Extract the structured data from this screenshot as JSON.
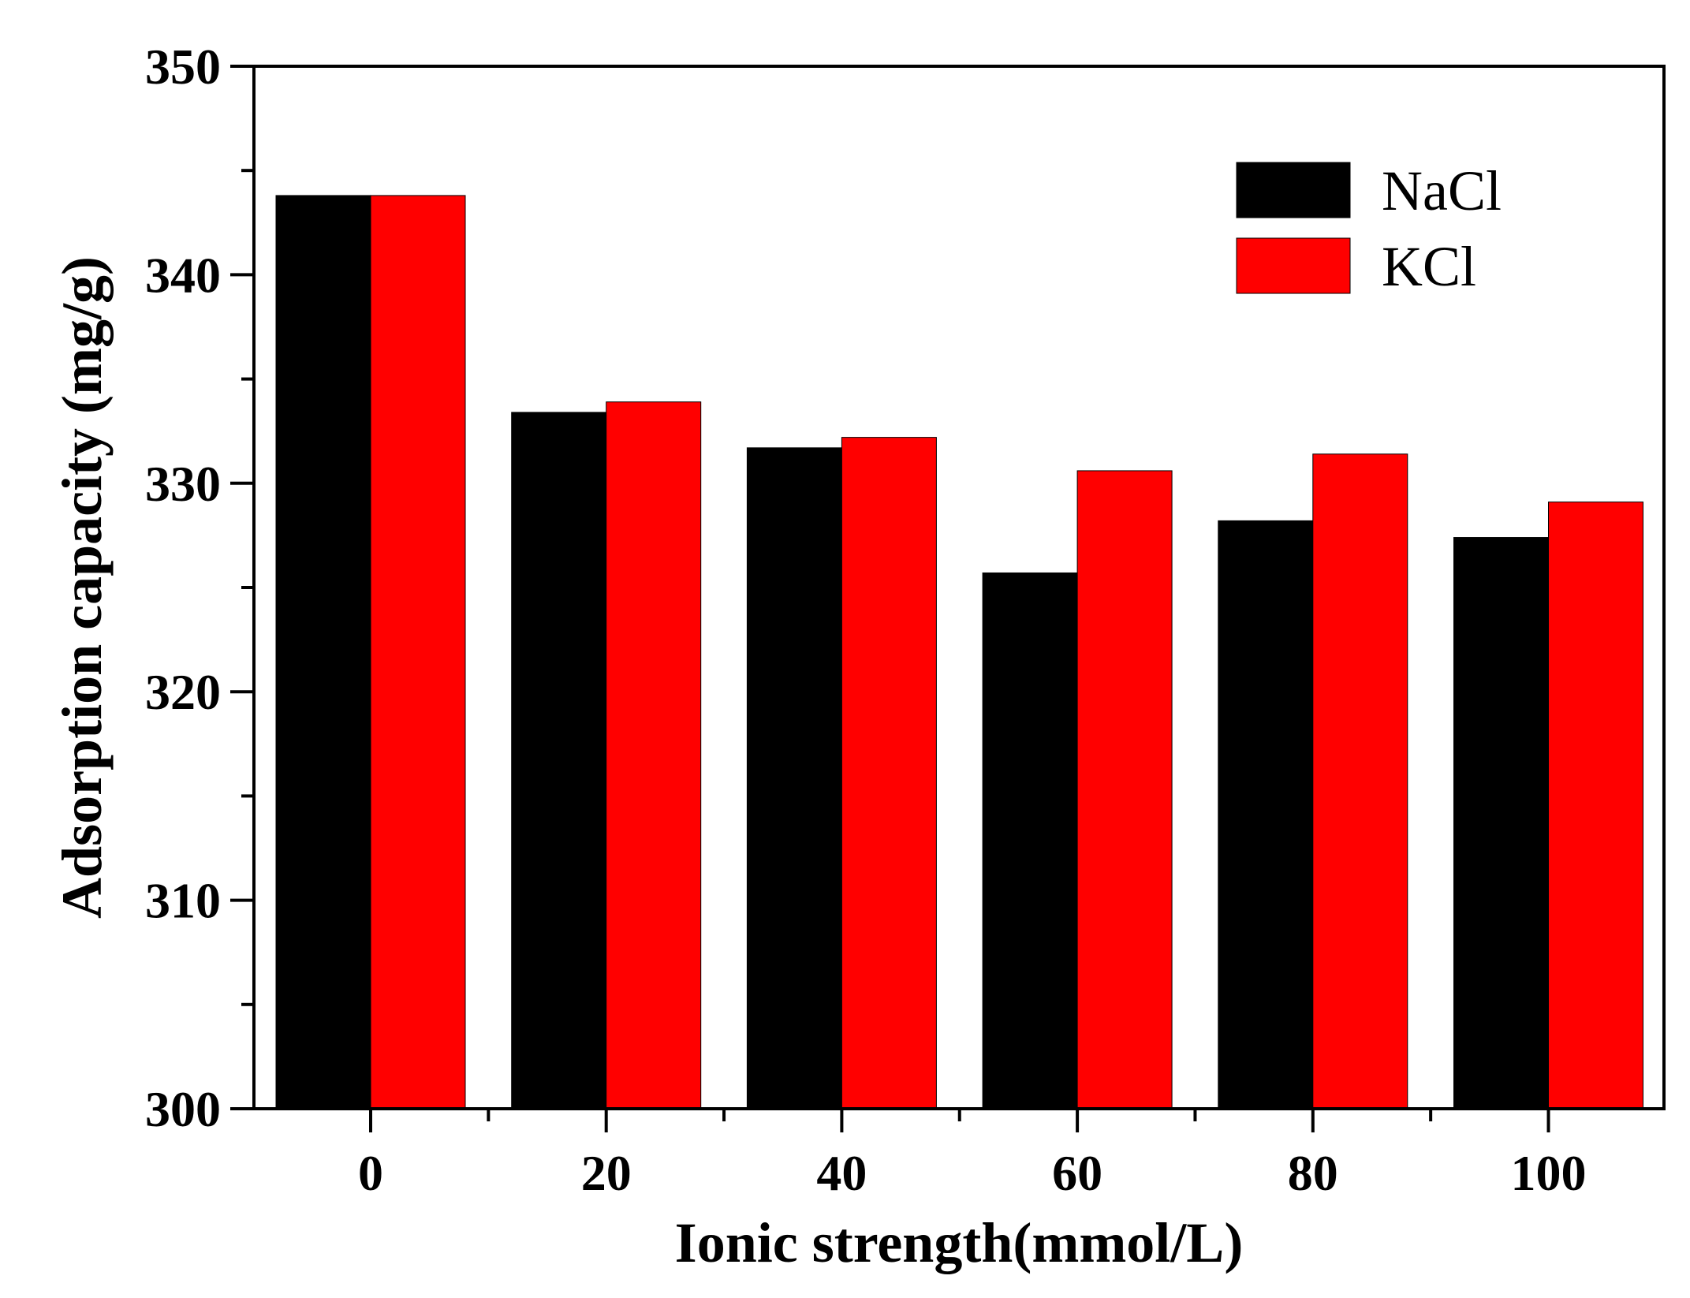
{
  "chart_data": {
    "type": "bar",
    "title": "",
    "xlabel": "Ionic strength(mmol/L)",
    "ylabel": "Adsorption capacity (mg/g)",
    "categories": [
      "0",
      "20",
      "40",
      "60",
      "80",
      "100"
    ],
    "series": [
      {
        "name": "NaCl",
        "color": "#000000",
        "values": [
          343.8,
          333.4,
          331.7,
          325.7,
          328.2,
          327.4
        ]
      },
      {
        "name": "KCl",
        "color": "#ff0000",
        "values": [
          343.8,
          333.9,
          332.2,
          330.6,
          331.4,
          329.1
        ]
      }
    ],
    "ylim": [
      300,
      350
    ],
    "yticks": [
      300,
      310,
      320,
      330,
      340,
      350
    ],
    "legend_position": "top-right",
    "grid": false
  }
}
